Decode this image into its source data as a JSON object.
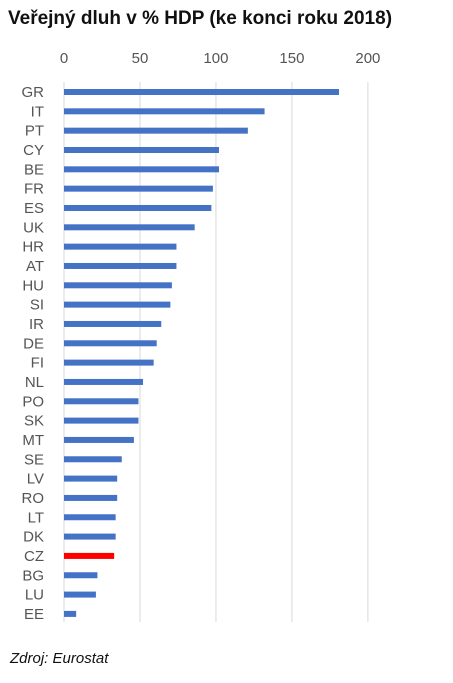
{
  "title": "Veřejný dluh v % HDP (ke konci roku 2018)",
  "source": "Zdroj: Eurostat",
  "colors": {
    "bar": "#4472c4",
    "highlight": "#ff0000",
    "grid": "#d9d9d9",
    "text": "#555555"
  },
  "chart_data": {
    "type": "bar",
    "orientation": "horizontal",
    "title": "Veřejný dluh v % HDP (ke konci roku 2018)",
    "xlim": [
      0,
      200
    ],
    "xticks": [
      0,
      50,
      100,
      150,
      200
    ],
    "x_axis_position": "top",
    "grid": true,
    "highlight_category": "CZ",
    "categories": [
      "GR",
      "IT",
      "PT",
      "CY",
      "BE",
      "FR",
      "ES",
      "UK",
      "HR",
      "AT",
      "HU",
      "SI",
      "IR",
      "DE",
      "FI",
      "NL",
      "PO",
      "SK",
      "MT",
      "SE",
      "LV",
      "RO",
      "LT",
      "DK",
      "CZ",
      "BG",
      "LU",
      "EE"
    ],
    "values": [
      181,
      132,
      121,
      102,
      102,
      98,
      97,
      86,
      74,
      74,
      71,
      70,
      64,
      61,
      59,
      52,
      49,
      49,
      46,
      38,
      35,
      35,
      34,
      34,
      33,
      22,
      21,
      8
    ]
  }
}
